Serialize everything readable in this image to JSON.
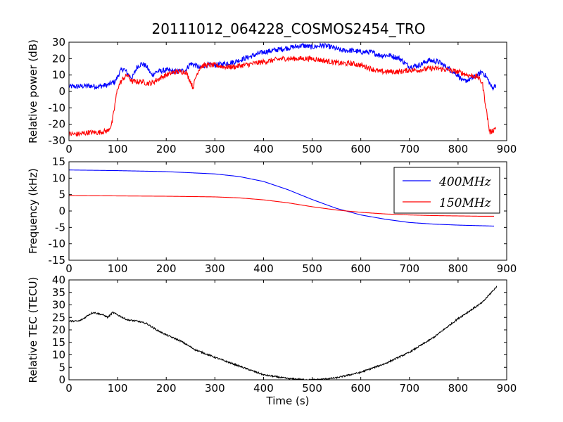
{
  "figure": {
    "title": "20111012_064228_COSMOS2454_TRO",
    "background": "#ffffff",
    "axes_color": "#000000"
  },
  "chart_data": [
    {
      "type": "line",
      "title": "20111012_064228_COSMOS2454_TRO",
      "xlabel": "",
      "ylabel": "Relative power (dB)",
      "xlim": [
        0,
        900
      ],
      "ylim": [
        -30,
        30
      ],
      "xticks": [
        0,
        100,
        200,
        300,
        400,
        500,
        600,
        700,
        800,
        900
      ],
      "yticks": [
        -30,
        -20,
        -10,
        0,
        10,
        20,
        30
      ],
      "grid": false,
      "legend": null,
      "series": [
        {
          "color": "#0000ff",
          "noise": 1.6,
          "x": [
            0,
            20,
            40,
            60,
            80,
            95,
            105,
            112,
            120,
            130,
            140,
            150,
            160,
            170,
            180,
            200,
            220,
            240,
            250,
            260,
            270,
            280,
            300,
            320,
            340,
            360,
            380,
            400,
            420,
            440,
            460,
            480,
            500,
            520,
            540,
            560,
            580,
            600,
            620,
            640,
            660,
            680,
            700,
            720,
            740,
            760,
            780,
            800,
            810,
            820,
            830,
            840,
            850,
            860,
            870,
            878
          ],
          "y": [
            3,
            3,
            3.5,
            3,
            4,
            6,
            12,
            14,
            11,
            8,
            15,
            17,
            15,
            10,
            12,
            13,
            12,
            13,
            17,
            16,
            14,
            16,
            16,
            17,
            18,
            20,
            22,
            24,
            25,
            26,
            27,
            28,
            27,
            28,
            27,
            25,
            25,
            24,
            24,
            22,
            22,
            20,
            15,
            16,
            19,
            18,
            14,
            10,
            6,
            7,
            8,
            10,
            12,
            8,
            2,
            4
          ]
        },
        {
          "color": "#ff0000",
          "noise": 1.6,
          "x": [
            0,
            20,
            40,
            60,
            80,
            88,
            92,
            96,
            100,
            105,
            112,
            120,
            130,
            140,
            150,
            160,
            170,
            180,
            200,
            220,
            240,
            250,
            255,
            260,
            265,
            270,
            280,
            300,
            320,
            340,
            360,
            380,
            400,
            420,
            440,
            460,
            480,
            500,
            520,
            540,
            560,
            580,
            600,
            620,
            640,
            660,
            680,
            700,
            720,
            740,
            760,
            780,
            800,
            820,
            840,
            850,
            855,
            860,
            865,
            870,
            878
          ],
          "y": [
            -26,
            -26,
            -25,
            -25,
            -24,
            -20,
            -13,
            -5,
            2,
            5,
            8,
            10,
            6,
            6,
            6,
            5,
            5,
            7,
            10,
            12,
            12,
            6,
            2,
            8,
            12,
            15,
            16,
            16,
            15,
            15,
            16,
            17,
            18,
            19,
            20,
            20,
            20,
            20,
            19,
            18,
            17,
            17,
            16,
            14,
            12,
            12,
            12,
            13,
            13,
            14,
            14,
            13,
            12,
            10,
            9,
            5,
            -5,
            -15,
            -25,
            -24,
            -22
          ]
        }
      ]
    },
    {
      "type": "line",
      "title": "",
      "xlabel": "",
      "ylabel": "Frequency (kHz)",
      "xlim": [
        0,
        900
      ],
      "ylim": [
        -15,
        15
      ],
      "xticks": [
        0,
        100,
        200,
        300,
        400,
        500,
        600,
        700,
        800,
        900
      ],
      "yticks": [
        -15,
        -10,
        -5,
        0,
        5,
        10,
        15
      ],
      "grid": false,
      "legend": "top-right",
      "series": [
        {
          "name": "400MHz",
          "color": "#0000ff",
          "noise": 0,
          "x": [
            0,
            100,
            200,
            300,
            350,
            400,
            450,
            500,
            550,
            600,
            650,
            700,
            750,
            800,
            850,
            875
          ],
          "y": [
            12.5,
            12.3,
            12.0,
            11.3,
            10.5,
            9.0,
            6.5,
            3.5,
            0.8,
            -1.2,
            -2.5,
            -3.5,
            -4.0,
            -4.3,
            -4.5,
            -4.6
          ]
        },
        {
          "name": "150MHz",
          "color": "#ff0000",
          "noise": 0,
          "x": [
            0,
            100,
            200,
            300,
            350,
            400,
            450,
            500,
            550,
            600,
            650,
            700,
            750,
            800,
            850,
            875
          ],
          "y": [
            4.7,
            4.6,
            4.5,
            4.3,
            4.0,
            3.4,
            2.5,
            1.3,
            0.3,
            -0.4,
            -0.9,
            -1.2,
            -1.4,
            -1.5,
            -1.6,
            -1.6
          ]
        }
      ]
    },
    {
      "type": "line",
      "title": "",
      "xlabel": "Time (s)",
      "ylabel": "Relative TEC (TECU)",
      "xlim": [
        0,
        900
      ],
      "ylim": [
        0,
        40
      ],
      "xticks": [
        0,
        100,
        200,
        300,
        400,
        500,
        600,
        700,
        800,
        900
      ],
      "yticks": [
        0,
        5,
        10,
        15,
        20,
        25,
        30,
        35,
        40
      ],
      "grid": false,
      "legend": null,
      "series": [
        {
          "color": "#000000",
          "noise": 0.3,
          "x": [
            0,
            10,
            20,
            30,
            40,
            50,
            60,
            70,
            80,
            90,
            100,
            120,
            140,
            160,
            180,
            200,
            230,
            260,
            300,
            350,
            400,
            450,
            480,
            500,
            520,
            550,
            600,
            650,
            700,
            750,
            800,
            850,
            880
          ],
          "y": [
            23.5,
            23.5,
            23.5,
            24.5,
            26,
            27,
            26.5,
            26,
            25,
            27,
            26,
            24,
            23.5,
            22.5,
            20,
            18,
            15.5,
            12,
            9,
            5.5,
            2,
            0.5,
            0.1,
            0,
            0.2,
            0.8,
            3,
            6.5,
            11,
            17,
            24.5,
            31,
            37.5
          ]
        }
      ]
    }
  ]
}
